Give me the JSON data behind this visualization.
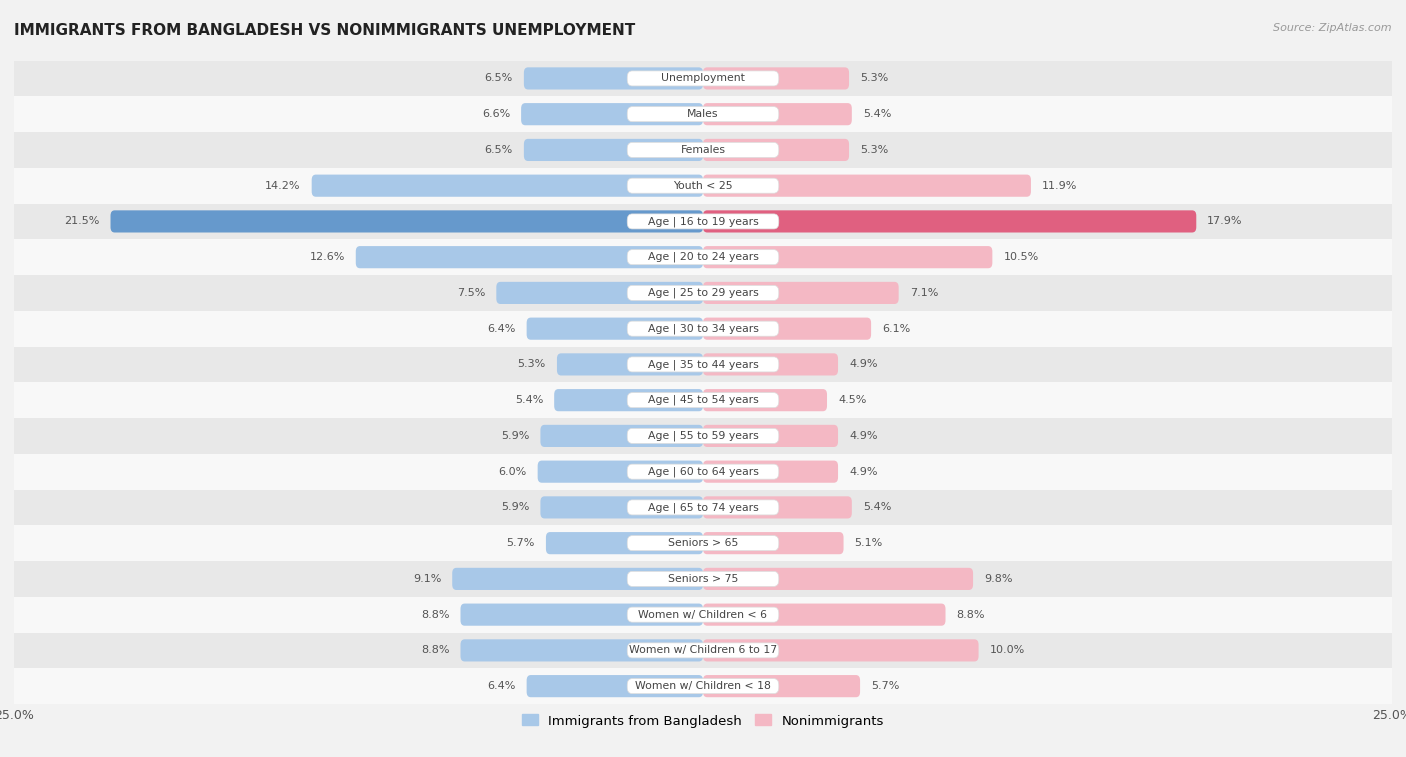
{
  "title": "IMMIGRANTS FROM BANGLADESH VS NONIMMIGRANTS UNEMPLOYMENT",
  "source": "Source: ZipAtlas.com",
  "categories": [
    "Unemployment",
    "Males",
    "Females",
    "Youth < 25",
    "Age | 16 to 19 years",
    "Age | 20 to 24 years",
    "Age | 25 to 29 years",
    "Age | 30 to 34 years",
    "Age | 35 to 44 years",
    "Age | 45 to 54 years",
    "Age | 55 to 59 years",
    "Age | 60 to 64 years",
    "Age | 65 to 74 years",
    "Seniors > 65",
    "Seniors > 75",
    "Women w/ Children < 6",
    "Women w/ Children 6 to 17",
    "Women w/ Children < 18"
  ],
  "immigrants": [
    6.5,
    6.6,
    6.5,
    14.2,
    21.5,
    12.6,
    7.5,
    6.4,
    5.3,
    5.4,
    5.9,
    6.0,
    5.9,
    5.7,
    9.1,
    8.8,
    8.8,
    6.4
  ],
  "nonimmigrants": [
    5.3,
    5.4,
    5.3,
    11.9,
    17.9,
    10.5,
    7.1,
    6.1,
    4.9,
    4.5,
    4.9,
    4.9,
    5.4,
    5.1,
    9.8,
    8.8,
    10.0,
    5.7
  ],
  "immigrant_color": "#a8c8e8",
  "nonimmigrant_color": "#f4b8c4",
  "highlight_immigrant_color": "#6699cc",
  "highlight_nonimmigrant_color": "#e06080",
  "axis_limit": 25.0,
  "bar_height": 0.62,
  "background_color": "#f2f2f2",
  "row_color_odd": "#e8e8e8",
  "row_color_even": "#f8f8f8",
  "legend_immigrant": "Immigrants from Bangladesh",
  "legend_nonimmigrant": "Nonimmigrants",
  "label_pill_color": "#ffffff",
  "label_text_color": "#444444",
  "value_text_color": "#555555"
}
